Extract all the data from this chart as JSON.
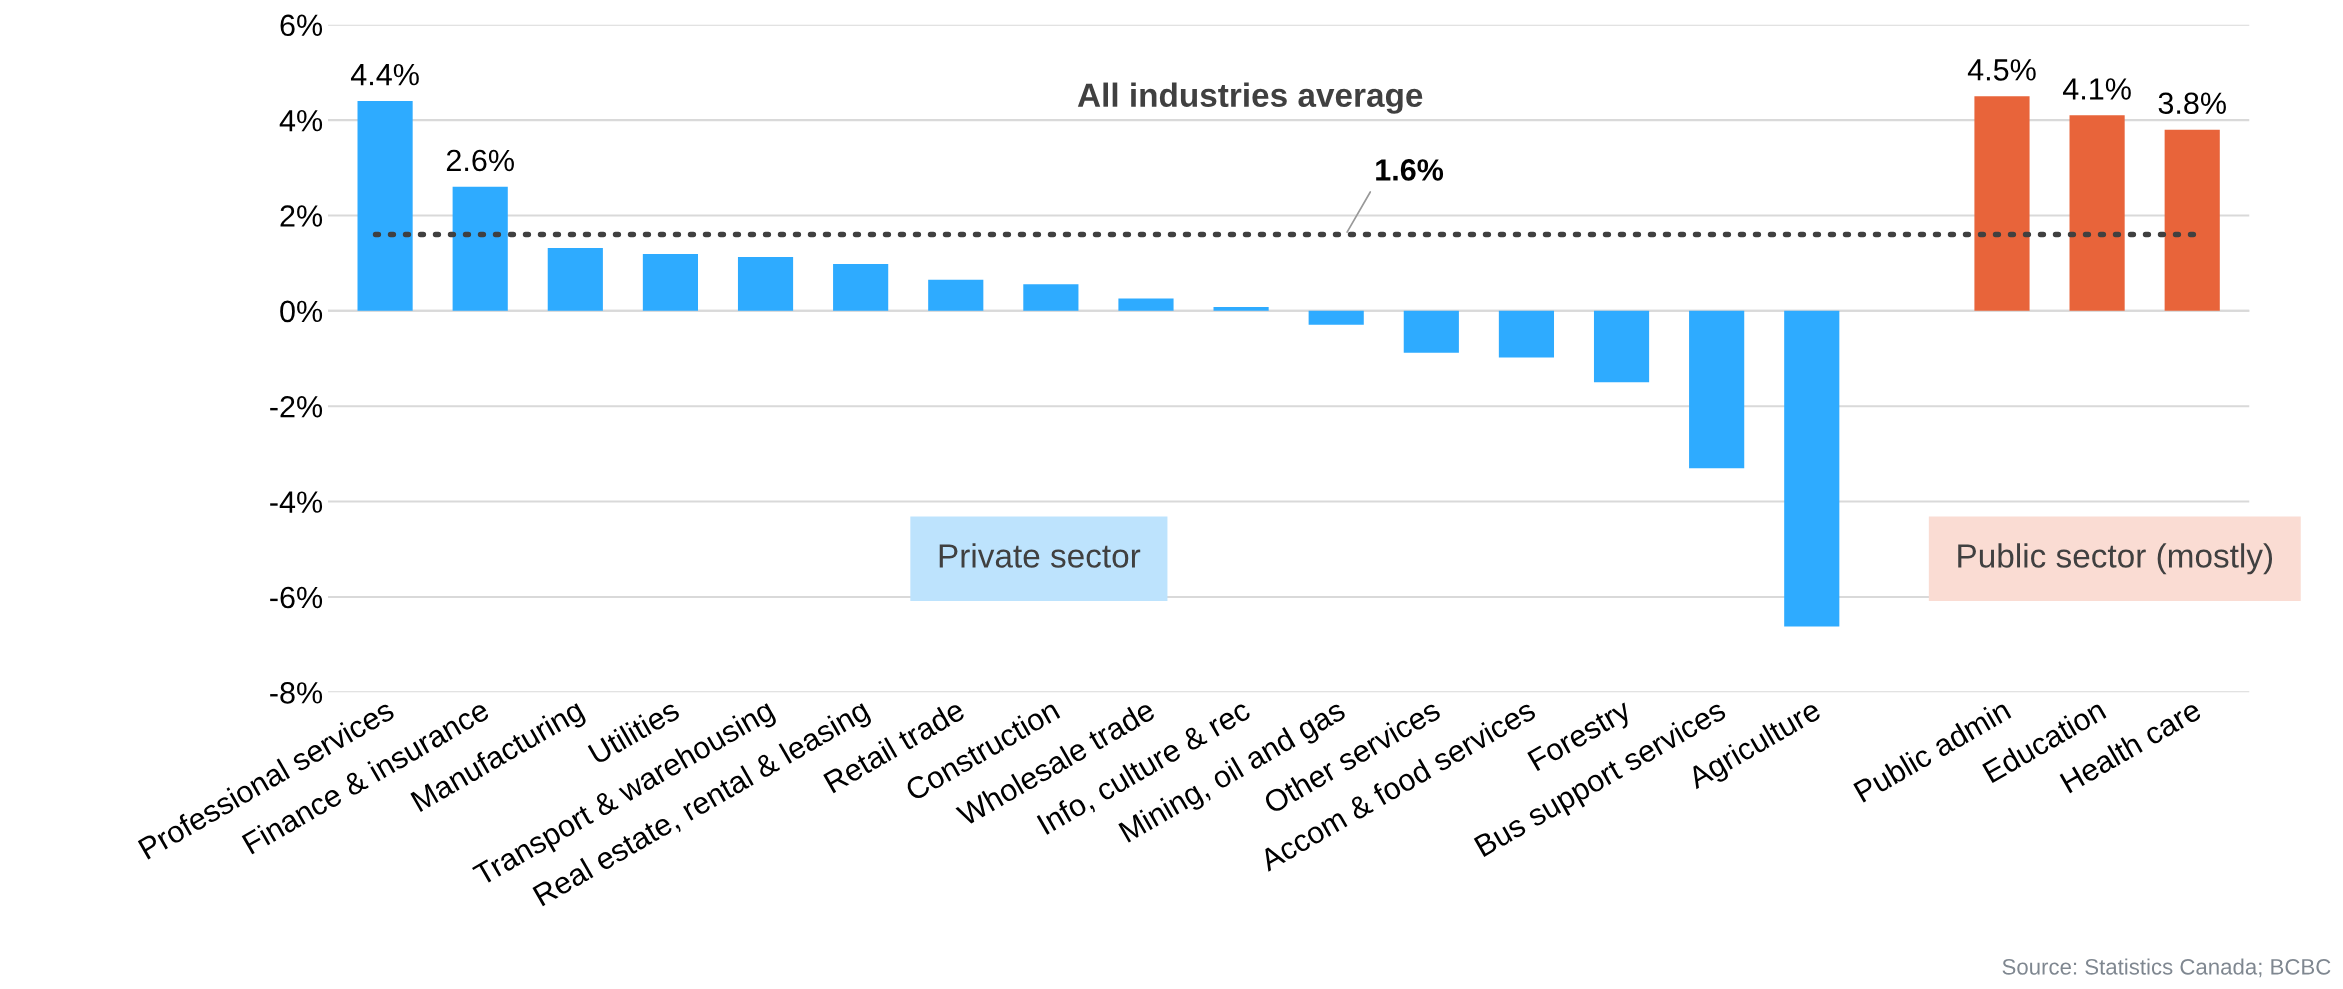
{
  "chart_data": {
    "type": "bar",
    "categories": [
      "Professional services",
      "Finance & insurance",
      "Manufacturing",
      "Utilities",
      "Transport & warehousing",
      "Real estate, rental & leasing",
      "Retail trade",
      "Construction",
      "Wholesale trade",
      "Info, culture & rec",
      "Mining, oil and gas",
      "Other services",
      "Accom & food services",
      "Forestry",
      "Bus support services",
      "Agriculture",
      null,
      "Public admin",
      "Education",
      "Health care"
    ],
    "values": [
      4.4,
      2.6,
      1.32,
      1.19,
      1.13,
      0.98,
      0.65,
      0.56,
      0.26,
      0.08,
      -0.29,
      -0.88,
      -0.98,
      -1.5,
      -3.3,
      -6.62,
      null,
      4.5,
      4.1,
      3.8
    ],
    "colors": [
      "#2eabff",
      "#2eabff",
      "#2eabff",
      "#2eabff",
      "#2eabff",
      "#2eabff",
      "#2eabff",
      "#2eabff",
      "#2eabff",
      "#2eabff",
      "#2eabff",
      "#2eabff",
      "#2eabff",
      "#2eabff",
      "#2eabff",
      "#2eabff",
      "#2eabff",
      "#e8643a",
      "#e8643a",
      "#e8643a"
    ],
    "value_labels": [
      "4.4%",
      "2.6%",
      null,
      null,
      null,
      null,
      null,
      null,
      null,
      null,
      null,
      null,
      null,
      null,
      null,
      null,
      null,
      "4.5%",
      "4.1%",
      "3.8%"
    ],
    "ylim": [
      -8,
      6
    ],
    "yticks": [
      {
        "value": -8,
        "label": "-8%"
      },
      {
        "value": -6,
        "label": "-6%"
      },
      {
        "value": -4,
        "label": "-4%"
      },
      {
        "value": -2,
        "label": "-2%"
      },
      {
        "value": 0,
        "label": "0%"
      },
      {
        "value": 2,
        "label": "2%"
      },
      {
        "value": 4,
        "label": "4%"
      },
      {
        "value": 6,
        "label": "6%"
      }
    ],
    "grid": "y",
    "ref_lines": [
      {
        "axis": "y",
        "value": 1.6,
        "label": "1.6%",
        "color": "#404040",
        "line_style": "dotted"
      }
    ],
    "annotations": [
      "All industries average",
      "Private sector",
      "Public sector (mostly)",
      "Source: Statistics Canada; BCBC"
    ]
  }
}
